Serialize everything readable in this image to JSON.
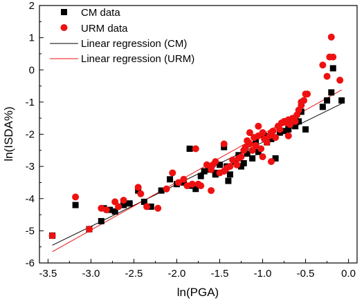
{
  "chart_data": {
    "type": "scatter",
    "xlabel": "ln(PGA)",
    "ylabel": "ln(ISDA%)",
    "xlim": [
      -3.6,
      0.1
    ],
    "ylim": [
      -6,
      2
    ],
    "xticks": [
      -3.5,
      -3.0,
      -2.5,
      -2.0,
      -1.5,
      -1.0,
      -0.5,
      0.0
    ],
    "xtick_labels": [
      "-3.5",
      "-3.0",
      "-2.5",
      "-2.0",
      "-1.5",
      "-1.0",
      "-0.5",
      "0.0"
    ],
    "yticks": [
      -6,
      -5,
      -4,
      -3,
      -2,
      -1,
      0,
      1,
      2
    ],
    "ytick_labels": [
      "-6",
      "-5",
      "-4",
      "-3",
      "-2",
      "-1",
      "0",
      "1",
      "2"
    ],
    "legend_position": "top-left",
    "series": [
      {
        "name": "CM data",
        "kind": "points",
        "marker": "square",
        "color": "#000000",
        "x": [
          -3.45,
          -3.18,
          -3.02,
          -2.88,
          -2.85,
          -2.78,
          -2.72,
          -2.62,
          -2.55,
          -2.45,
          -2.38,
          -2.3,
          -2.18,
          -2.08,
          -2.0,
          -1.92,
          -1.85,
          -1.78,
          -1.72,
          -1.68,
          -1.62,
          -1.55,
          -1.5,
          -1.45,
          -1.42,
          -1.38,
          -1.32,
          -1.28,
          -1.22,
          -1.18,
          -1.12,
          -1.08,
          -1.05,
          -1.0,
          -0.95,
          -0.9,
          -0.85,
          -0.8,
          -0.75,
          -0.7,
          -0.62,
          -0.58,
          -0.55,
          -0.5,
          -0.3,
          -0.25,
          -0.2,
          -0.18,
          -0.08,
          -1.85,
          -1.4,
          -1.25,
          -0.98,
          -1.55
        ],
        "y": [
          -5.15,
          -4.2,
          -4.95,
          -4.7,
          -4.3,
          -4.35,
          -4.4,
          -4.2,
          -4.15,
          -3.75,
          -4.1,
          -4.25,
          -3.75,
          -3.4,
          -3.55,
          -3.5,
          -3.6,
          -3.7,
          -3.3,
          -3.15,
          -3.1,
          -3.25,
          -2.95,
          -2.4,
          -3.0,
          -3.25,
          -2.85,
          -2.65,
          -2.9,
          -2.6,
          -2.75,
          -2.2,
          -2.55,
          -2.0,
          -2.25,
          -2.15,
          -2.75,
          -1.95,
          -1.9,
          -1.85,
          -1.75,
          -1.6,
          -1.3,
          -1.85,
          -1.15,
          -0.95,
          -0.7,
          0.05,
          -0.95,
          -2.45,
          -3.45,
          -3.0,
          -2.05,
          -3.2
        ]
      },
      {
        "name": "URM data",
        "kind": "points",
        "marker": "circle",
        "color": "#ee1111",
        "x": [
          -3.45,
          -3.18,
          -3.02,
          -2.88,
          -2.82,
          -2.72,
          -2.68,
          -2.62,
          -2.45,
          -2.42,
          -2.35,
          -2.22,
          -2.12,
          -2.05,
          -1.98,
          -1.92,
          -1.88,
          -1.82,
          -1.78,
          -1.72,
          -1.65,
          -1.6,
          -1.58,
          -1.55,
          -1.5,
          -1.45,
          -1.42,
          -1.38,
          -1.35,
          -1.3,
          -1.28,
          -1.25,
          -1.22,
          -1.2,
          -1.18,
          -1.15,
          -1.12,
          -1.1,
          -1.08,
          -1.05,
          -1.02,
          -1.0,
          -0.98,
          -0.95,
          -0.92,
          -0.9,
          -0.88,
          -0.85,
          -0.82,
          -0.8,
          -0.78,
          -0.75,
          -0.72,
          -0.7,
          -0.68,
          -0.65,
          -0.62,
          -0.6,
          -0.58,
          -0.55,
          -0.52,
          -0.5,
          -0.48,
          -0.3,
          -0.25,
          -0.22,
          -0.2,
          -0.18,
          -0.1,
          -1.45,
          -1.75,
          -1.6,
          -1.3,
          -1.0,
          -0.9,
          -0.7,
          -0.55,
          -1.15,
          -1.05
        ],
        "y": [
          -5.15,
          -3.95,
          -4.95,
          -4.3,
          -4.35,
          -4.1,
          -4.25,
          -4.05,
          -3.65,
          -3.85,
          -4.25,
          -4.3,
          -3.7,
          -3.2,
          -3.5,
          -3.4,
          -3.6,
          -3.55,
          -2.45,
          -3.6,
          -2.95,
          -3.1,
          -2.95,
          -2.85,
          -3.2,
          -3.15,
          -3.05,
          -3.0,
          -2.8,
          -2.95,
          -2.75,
          -2.7,
          -2.5,
          -2.4,
          -2.2,
          -2.3,
          -2.5,
          -2.1,
          -2.35,
          -2.05,
          -2.45,
          -1.95,
          -2.15,
          -2.25,
          -2.05,
          -1.95,
          -1.9,
          -2.1,
          -1.75,
          -1.85,
          -1.65,
          -1.6,
          -1.65,
          -1.55,
          -1.7,
          -1.5,
          -1.6,
          -1.4,
          -1.25,
          -1.1,
          -0.95,
          -0.75,
          -0.75,
          0.15,
          -0.2,
          0.4,
          1.02,
          0.4,
          -0.32,
          -2.3,
          -3.55,
          -3.75,
          -2.95,
          -2.7,
          -2.85,
          -2.05,
          -1.0,
          -1.95,
          -1.75
        ]
      },
      {
        "name": "Linear regression (CM)",
        "kind": "line",
        "color": "#000000",
        "x": [
          -3.45,
          -0.08
        ],
        "y": [
          -5.45,
          -1.05
        ]
      },
      {
        "name": "Linear regression (URM)",
        "kind": "line",
        "color": "#ee1111",
        "x": [
          -3.45,
          -0.08
        ],
        "y": [
          -5.65,
          -0.62
        ]
      }
    ]
  }
}
